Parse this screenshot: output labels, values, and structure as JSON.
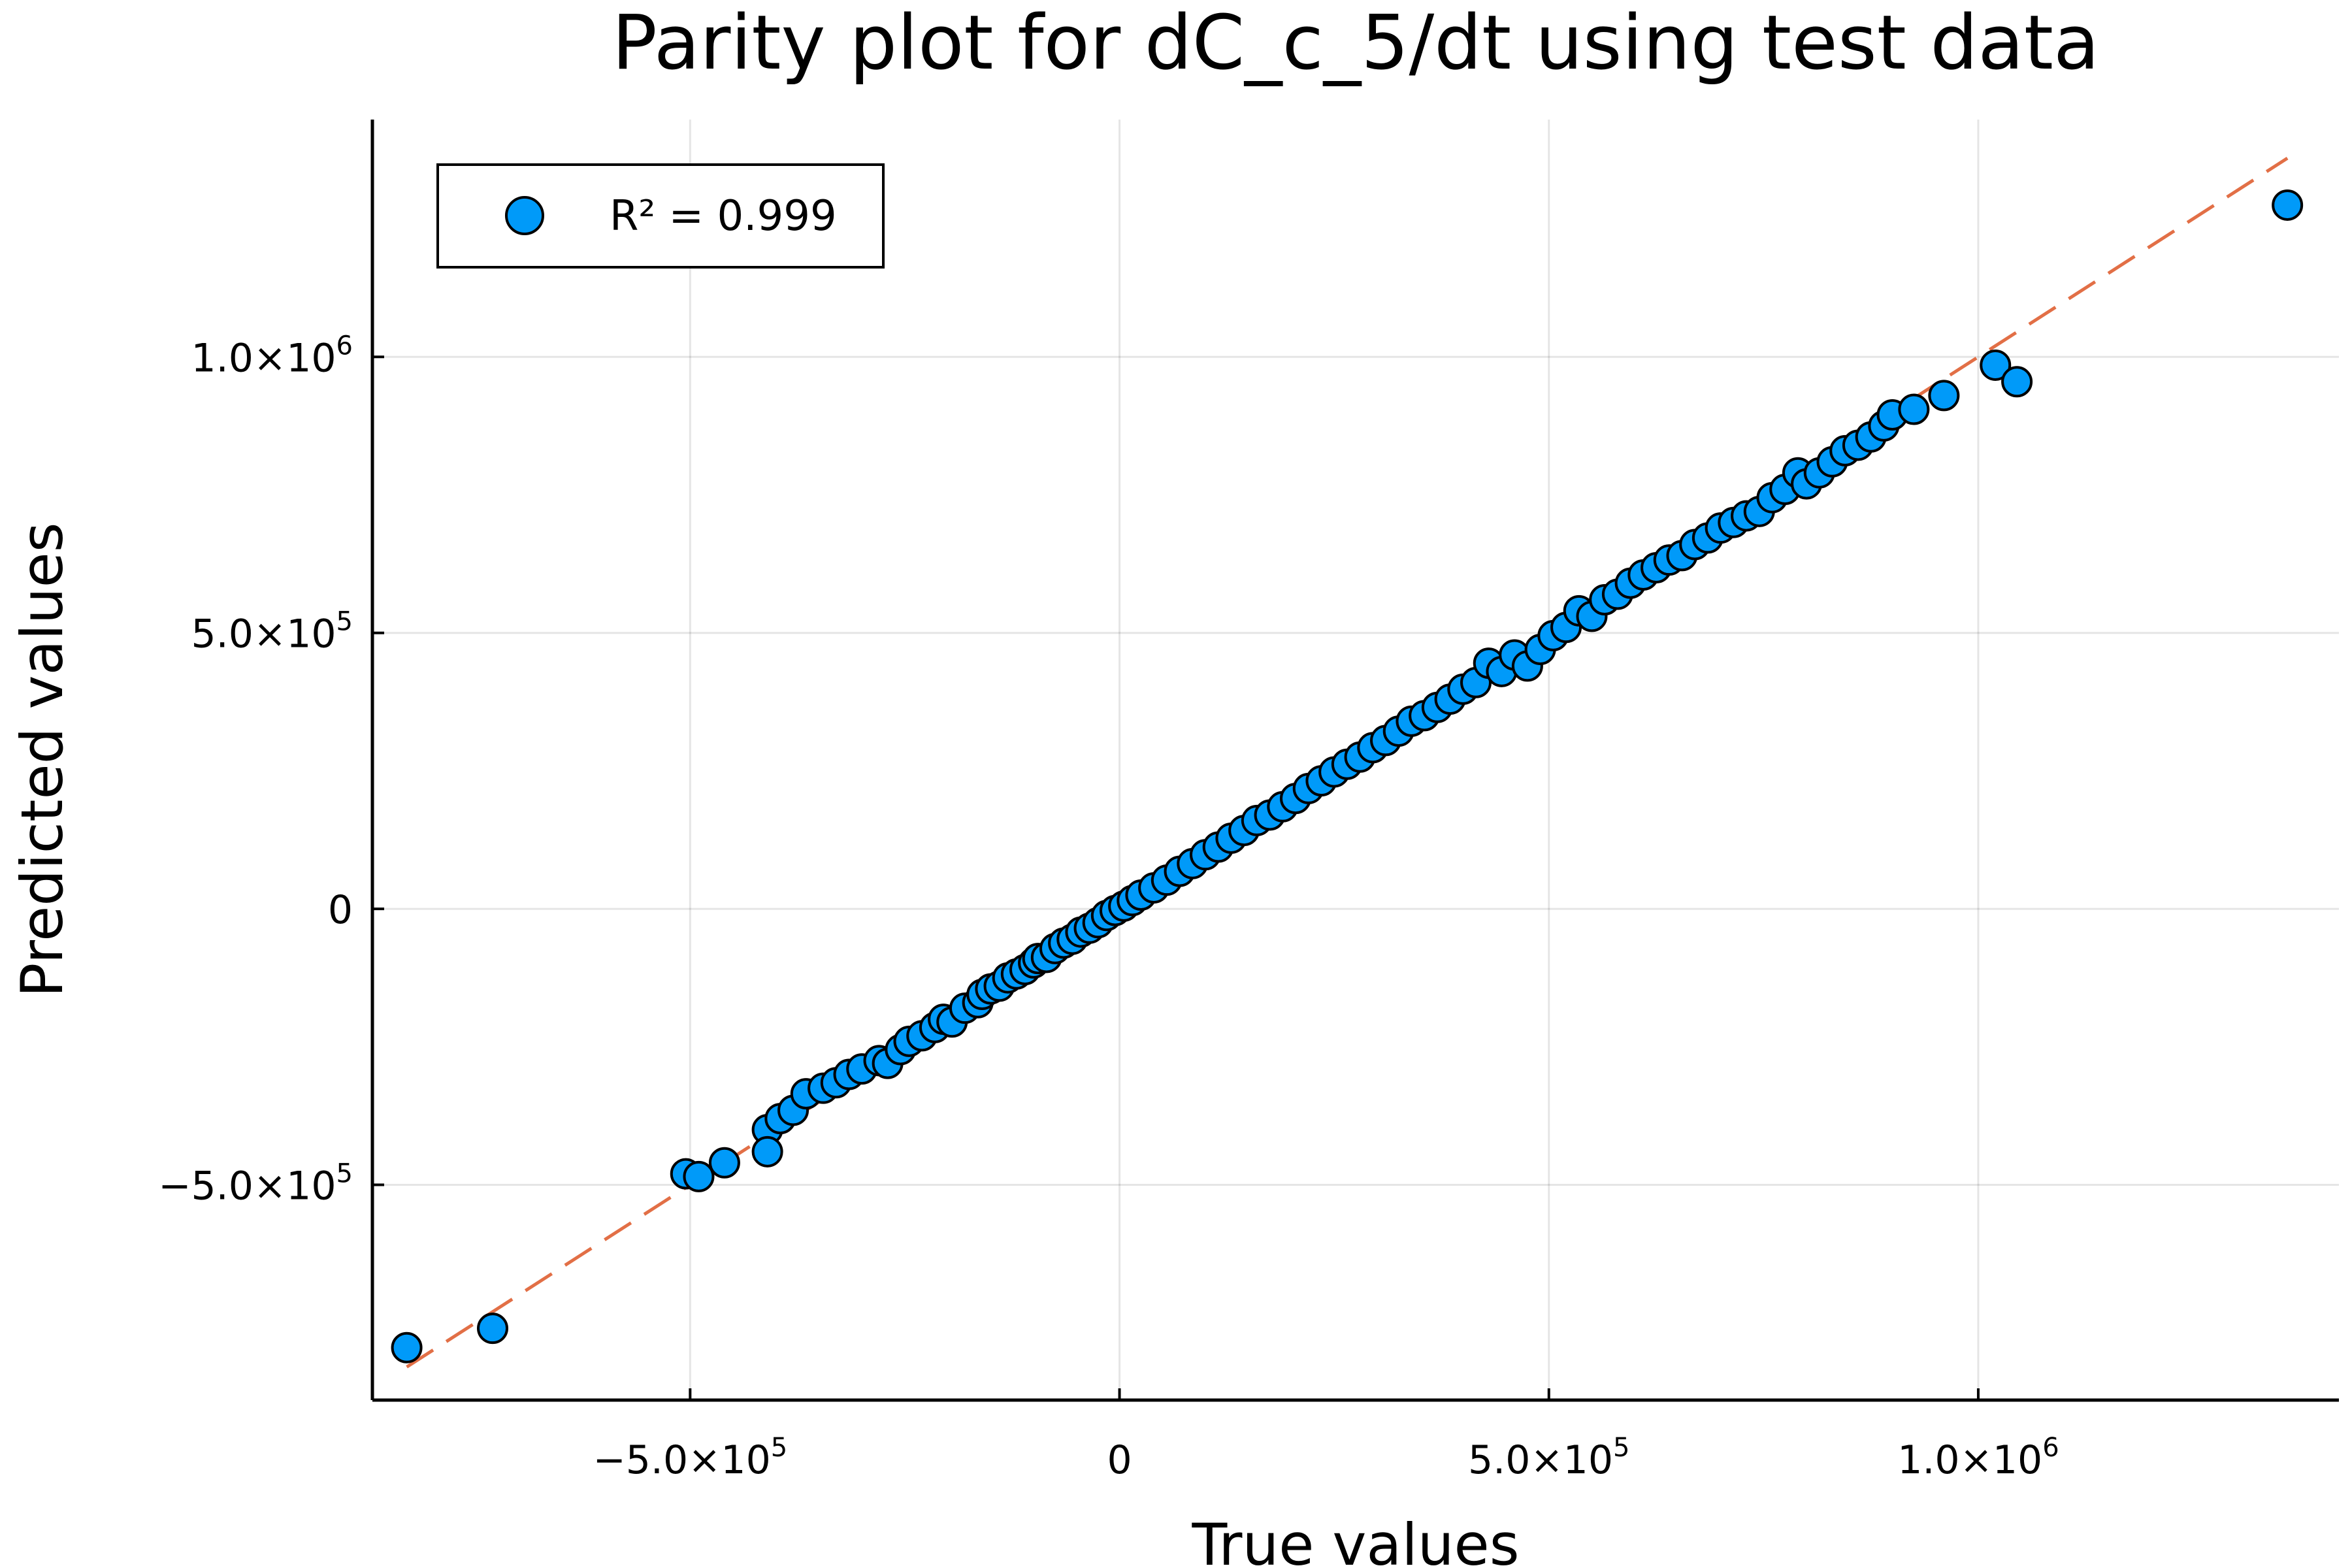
{
  "chart_data": {
    "type": "scatter",
    "title": "Parity plot for dC_c_5/dt using test data",
    "xlabel": "True values",
    "ylabel": "Predicted values",
    "xlim": [
      -870000,
      1420000
    ],
    "ylim": [
      -890000,
      1430000
    ],
    "grid": true,
    "legend_position": "top-left",
    "x_ticks": [
      {
        "value": -500000,
        "mantissa": "−5.0×10",
        "exp": "5"
      },
      {
        "value": 0,
        "mantissa": "0",
        "exp": ""
      },
      {
        "value": 500000,
        "mantissa": "5.0×10",
        "exp": "5"
      },
      {
        "value": 1000000,
        "mantissa": "1.0×10",
        "exp": "6"
      }
    ],
    "y_ticks": [
      {
        "value": -500000,
        "mantissa": "−5.0×10",
        "exp": "5"
      },
      {
        "value": 0,
        "mantissa": "0",
        "exp": ""
      },
      {
        "value": 500000,
        "mantissa": "5.0×10",
        "exp": "5"
      },
      {
        "value": 1000000,
        "mantissa": "1.0×10",
        "exp": "6"
      }
    ],
    "colors": {
      "points": "#009af9",
      "reference_line": "#e26f46",
      "point_edge": "#000000"
    },
    "series": [
      {
        "name": "R² = 0.999",
        "points": [
          [
            -830000,
            -795000
          ],
          [
            -730000,
            -760000
          ],
          [
            -505000,
            -480000
          ],
          [
            -490000,
            -485000
          ],
          [
            -460000,
            -460000
          ],
          [
            -410000,
            -400000
          ],
          [
            -410000,
            -440000
          ],
          [
            -395000,
            -380000
          ],
          [
            -380000,
            -365000
          ],
          [
            -365000,
            -335000
          ],
          [
            -345000,
            -325000
          ],
          [
            -330000,
            -315000
          ],
          [
            -315000,
            -300000
          ],
          [
            -300000,
            -290000
          ],
          [
            -280000,
            -275000
          ],
          [
            -270000,
            -280000
          ],
          [
            -255000,
            -255000
          ],
          [
            -245000,
            -240000
          ],
          [
            -230000,
            -230000
          ],
          [
            -215000,
            -215000
          ],
          [
            -205000,
            -200000
          ],
          [
            -195000,
            -205000
          ],
          [
            -180000,
            -180000
          ],
          [
            -165000,
            -170000
          ],
          [
            -160000,
            -155000
          ],
          [
            -150000,
            -145000
          ],
          [
            -140000,
            -140000
          ],
          [
            -130000,
            -125000
          ],
          [
            -120000,
            -118000
          ],
          [
            -110000,
            -110000
          ],
          [
            -100000,
            -98000
          ],
          [
            -95000,
            -90000
          ],
          [
            -85000,
            -88000
          ],
          [
            -75000,
            -72000
          ],
          [
            -65000,
            -62000
          ],
          [
            -55000,
            -55000
          ],
          [
            -45000,
            -42000
          ],
          [
            -35000,
            -35000
          ],
          [
            -25000,
            -25000
          ],
          [
            -15000,
            -12000
          ],
          [
            -5000,
            -3000
          ],
          [
            5000,
            5000
          ],
          [
            15000,
            15000
          ],
          [
            25000,
            25000
          ],
          [
            40000,
            38000
          ],
          [
            55000,
            52000
          ],
          [
            70000,
            68000
          ],
          [
            85000,
            82000
          ],
          [
            100000,
            98000
          ],
          [
            115000,
            112000
          ],
          [
            130000,
            128000
          ],
          [
            145000,
            142000
          ],
          [
            160000,
            160000
          ],
          [
            175000,
            170000
          ],
          [
            190000,
            185000
          ],
          [
            205000,
            200000
          ],
          [
            220000,
            218000
          ],
          [
            235000,
            232000
          ],
          [
            250000,
            248000
          ],
          [
            265000,
            262000
          ],
          [
            280000,
            275000
          ],
          [
            295000,
            292000
          ],
          [
            310000,
            305000
          ],
          [
            325000,
            322000
          ],
          [
            340000,
            340000
          ],
          [
            355000,
            350000
          ],
          [
            370000,
            365000
          ],
          [
            385000,
            380000
          ],
          [
            400000,
            398000
          ],
          [
            415000,
            410000
          ],
          [
            430000,
            445000
          ],
          [
            445000,
            430000
          ],
          [
            460000,
            460000
          ],
          [
            475000,
            440000
          ],
          [
            490000,
            470000
          ],
          [
            505000,
            495000
          ],
          [
            520000,
            510000
          ],
          [
            535000,
            540000
          ],
          [
            550000,
            530000
          ],
          [
            565000,
            560000
          ],
          [
            580000,
            570000
          ],
          [
            595000,
            590000
          ],
          [
            610000,
            605000
          ],
          [
            625000,
            618000
          ],
          [
            640000,
            632000
          ],
          [
            655000,
            640000
          ],
          [
            670000,
            660000
          ],
          [
            685000,
            672000
          ],
          [
            700000,
            690000
          ],
          [
            715000,
            700000
          ],
          [
            730000,
            712000
          ],
          [
            745000,
            720000
          ],
          [
            760000,
            745000
          ],
          [
            775000,
            760000
          ],
          [
            790000,
            790000
          ],
          [
            800000,
            770000
          ],
          [
            815000,
            790000
          ],
          [
            830000,
            810000
          ],
          [
            845000,
            830000
          ],
          [
            860000,
            840000
          ],
          [
            875000,
            855000
          ],
          [
            890000,
            875000
          ],
          [
            900000,
            895000
          ],
          [
            925000,
            905000
          ],
          [
            960000,
            930000
          ],
          [
            1020000,
            985000
          ],
          [
            1045000,
            955000
          ],
          [
            1360000,
            1275000
          ]
        ]
      }
    ],
    "reference_line": {
      "x": [
        -830000,
        1360000
      ],
      "y": [
        -830000,
        1360000
      ]
    }
  }
}
